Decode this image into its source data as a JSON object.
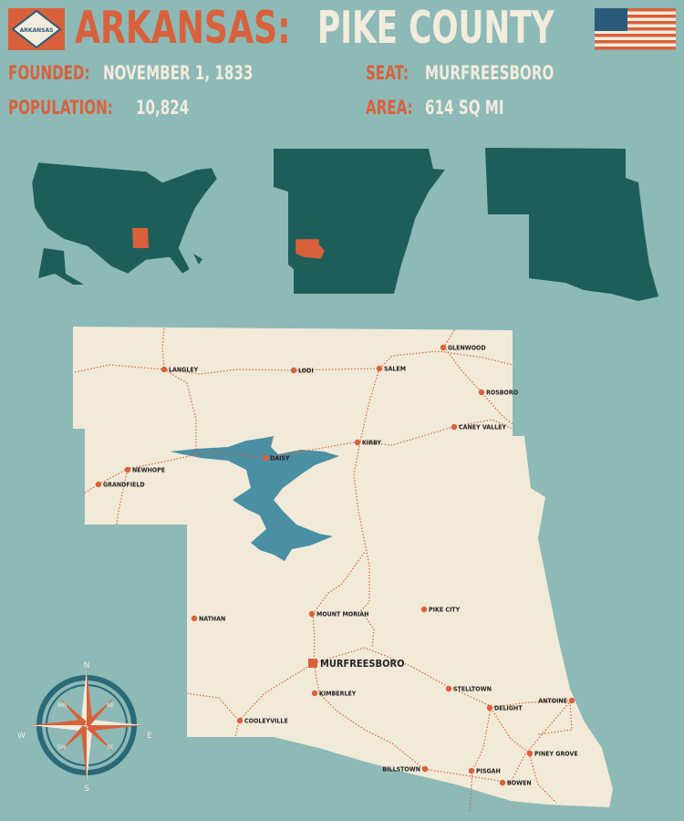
{
  "header": {
    "state": "ARKANSAS:",
    "county": "PIKE COUNTY",
    "state_flag_text": "ARKANSAS",
    "founded_label": "FOUNDED:",
    "founded_value": "NOVEMBER 1, 1833",
    "population_label": "POPULATION:",
    "population_value": "10,824",
    "seat_label": "SEAT:",
    "seat_value": "MURFREESBORO",
    "area_label": "AREA:",
    "area_value": "614 SQ MI"
  },
  "colors": {
    "background": "#8db9b6",
    "accent": "#d8613c",
    "cream": "#f2ecdc",
    "dark_teal": "#1e5e5a",
    "lake": "#4a8fa3"
  },
  "map": {
    "seat": "MURFREESBORO",
    "towns": [
      "GLENWOOD",
      "LANGLEY",
      "LODI",
      "SALEM",
      "ROSBORO",
      "CANEY VALLEY",
      "KIRBY",
      "DAISY",
      "NEWHOPE",
      "GRANDFIELD",
      "PIKE CITY",
      "MOUNT MORIAH",
      "NATHAN",
      "STELLTOWN",
      "KIMBERLEY",
      "ANTOINE",
      "DELIGHT",
      "COOLEYVILLE",
      "PINEY GROVE",
      "BILLSTOWN",
      "PISGAH",
      "BOWEN"
    ]
  },
  "compass": {
    "n": "N",
    "e": "E",
    "s": "S",
    "w": "W",
    "ne": "NE",
    "nw": "NW",
    "se": "SE",
    "sw": "SW"
  }
}
